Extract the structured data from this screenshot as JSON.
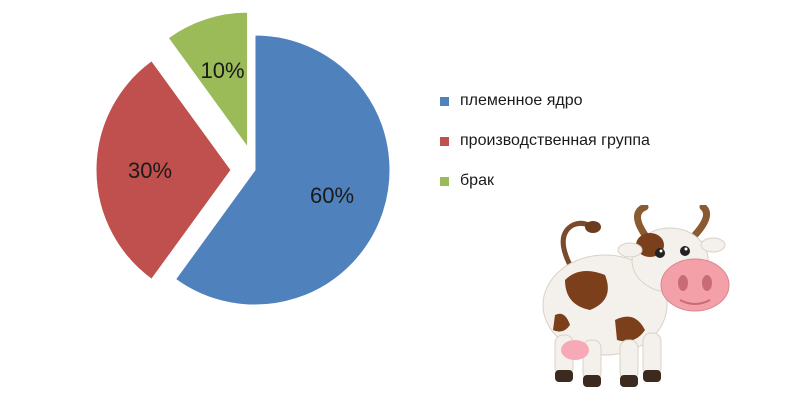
{
  "chart_data": {
    "type": "pie",
    "categories": [
      "племенное ядро",
      "производственная группа",
      "брак"
    ],
    "values": [
      60,
      30,
      10
    ],
    "labels": [
      "60%",
      "30%",
      "10%"
    ],
    "colors": [
      "#4F81BD",
      "#C0504D",
      "#9BBB59"
    ],
    "exploded": [
      false,
      true,
      true
    ],
    "legend_position": "right"
  },
  "illustration": {
    "icon": "cartoon-cow-icon"
  }
}
